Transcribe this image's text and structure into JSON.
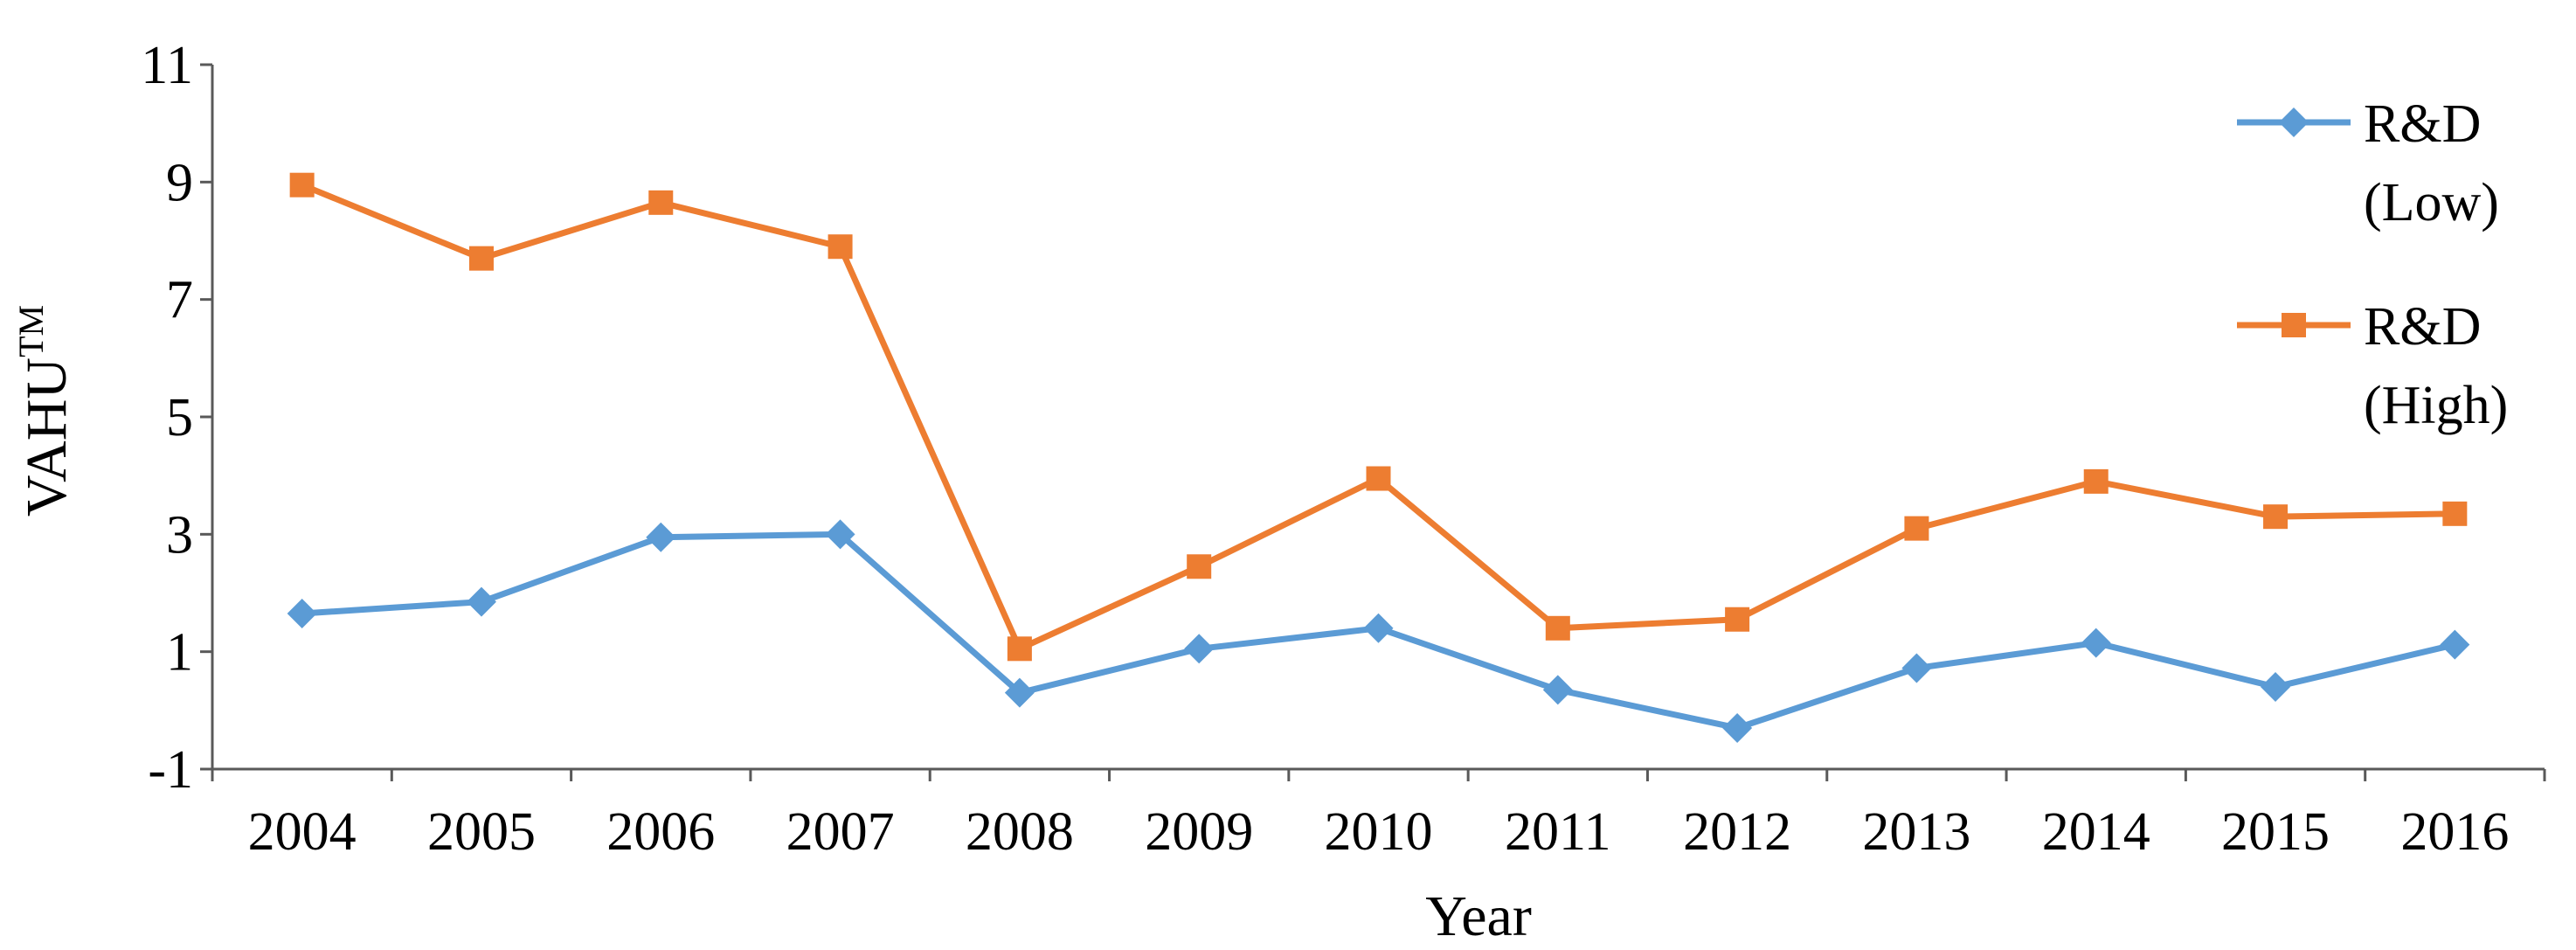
{
  "chart_data": {
    "type": "line",
    "title": "",
    "xlabel": "Year",
    "ylabel": "VAHU",
    "ylabel_superscript": "TM",
    "categories": [
      "2004",
      "2005",
      "2006",
      "2007",
      "2008",
      "2009",
      "2010",
      "2011",
      "2012",
      "2013",
      "2014",
      "2015",
      "2016"
    ],
    "ylim": [
      -1,
      11
    ],
    "yticks": [
      "-1",
      "1",
      "3",
      "5",
      "7",
      "9",
      "11"
    ],
    "grid": false,
    "legend_position": "right",
    "series": [
      {
        "name": "R&D (Low)",
        "legend_lines": [
          "R&D",
          "(Low)"
        ],
        "color": "#5B9BD5",
        "marker": "diamond",
        "values": [
          1.65,
          1.85,
          2.95,
          3.0,
          0.3,
          1.05,
          1.4,
          0.35,
          -0.3,
          0.72,
          1.15,
          0.4,
          1.12
        ]
      },
      {
        "name": "R&D (High)",
        "legend_lines": [
          "R&D",
          "(High)"
        ],
        "color": "#ED7D31",
        "marker": "square",
        "values": [
          8.95,
          7.7,
          8.65,
          7.9,
          1.05,
          2.45,
          3.95,
          1.4,
          1.55,
          3.1,
          3.9,
          3.3,
          3.35
        ]
      }
    ]
  }
}
